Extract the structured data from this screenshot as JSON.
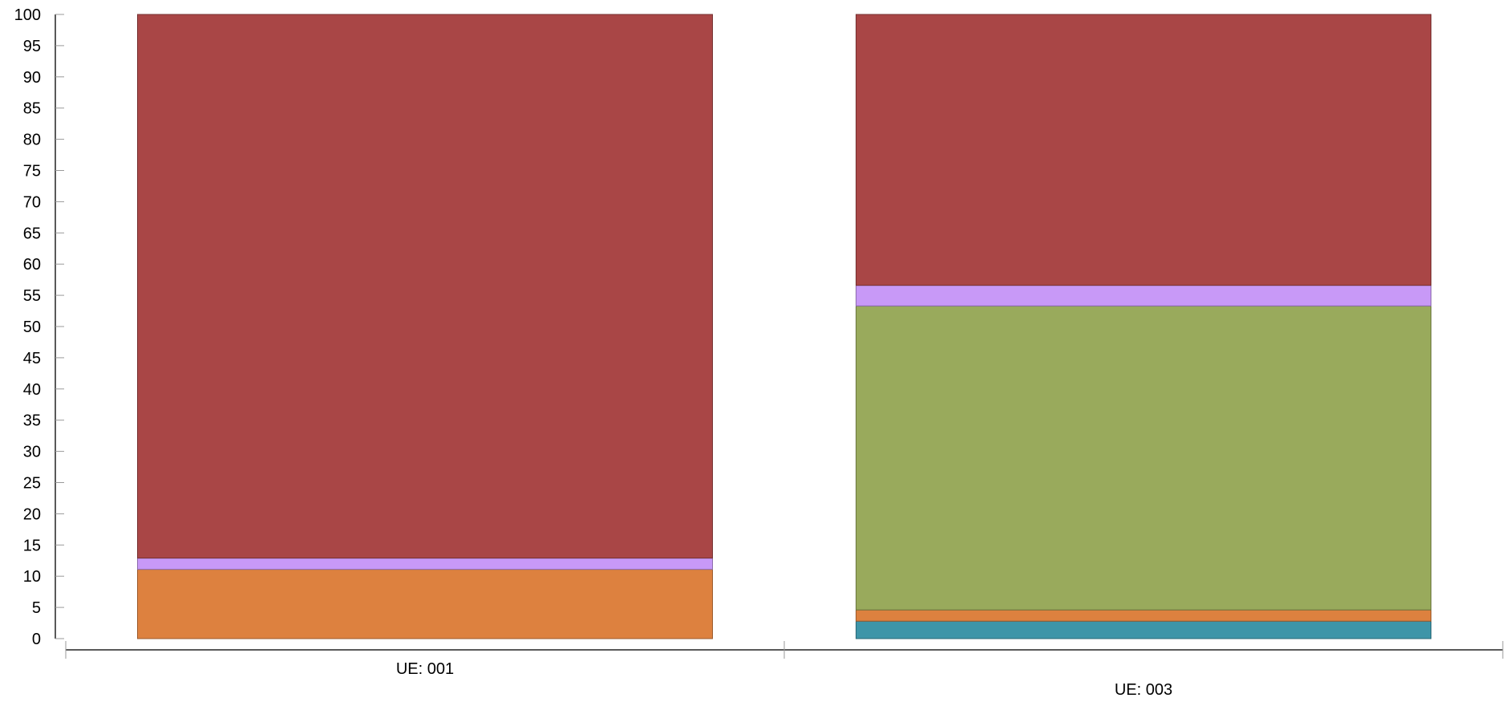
{
  "chart_data": {
    "type": "bar",
    "stacked": true,
    "categories": [
      "UE: 001",
      "UE: 003"
    ],
    "series": [
      {
        "color": "#3e95a8",
        "values": [
          0.0,
          2.8
        ]
      },
      {
        "color": "#dd813f",
        "values": [
          11.1,
          1.8
        ]
      },
      {
        "color": "#99aa5c",
        "values": [
          0.0,
          48.7
        ]
      },
      {
        "color": "#c899f7",
        "values": [
          1.8,
          3.3
        ]
      },
      {
        "color": "#a94646",
        "values": [
          87.1,
          43.4
        ]
      }
    ],
    "title": "",
    "xlabel": "",
    "ylabel": "",
    "ylim": [
      0,
      100
    ],
    "yticks": [
      "0",
      "5",
      "10",
      "15",
      "20",
      "25",
      "30",
      "35",
      "40",
      "45",
      "50",
      "55",
      "60",
      "65",
      "70",
      "75",
      "80",
      "85",
      "90",
      "95",
      "100"
    ],
    "grid": false,
    "legend": "none"
  }
}
